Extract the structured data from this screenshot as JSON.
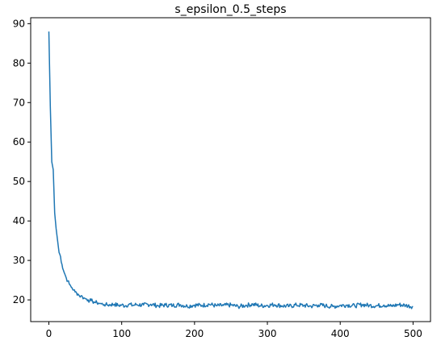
{
  "chart_data": {
    "type": "line",
    "title": "s_epsilon_0.5_steps",
    "xlabel": "",
    "ylabel": "",
    "xlim": [
      -24.95,
      523.95
    ],
    "ylim": [
      14.5,
      91.5
    ],
    "x_ticks": [
      0,
      100,
      200,
      300,
      400,
      500
    ],
    "y_ticks": [
      20,
      30,
      40,
      50,
      60,
      70,
      80,
      90
    ],
    "grid": false,
    "legend": "none",
    "line_color": "#1f77b4",
    "series": [
      {
        "x": [
          0,
          2,
          4,
          6,
          8,
          10,
          12,
          14,
          16,
          18,
          20,
          22,
          24,
          26,
          28,
          30,
          32,
          34,
          36,
          38,
          40,
          42,
          44,
          46,
          48,
          50,
          52,
          54,
          56,
          58,
          60,
          62,
          64,
          66,
          68,
          70,
          72,
          74,
          76,
          78,
          80,
          85,
          90,
          95,
          100,
          105,
          110,
          115,
          120,
          130,
          140,
          150,
          160,
          170,
          180,
          190,
          200,
          210,
          220,
          230,
          240,
          250,
          260,
          270,
          280,
          290,
          300,
          310,
          320,
          330,
          340,
          350,
          360,
          370,
          380,
          390,
          400,
          410,
          420,
          430,
          440,
          450,
          460,
          470,
          480,
          490,
          500
        ],
        "y": [
          88,
          69,
          55,
          53,
          42,
          38,
          35,
          32,
          31,
          29,
          27.5,
          26.5,
          25.5,
          24.8,
          24,
          23.5,
          23,
          22.5,
          22,
          21.8,
          21.5,
          21,
          21,
          20.8,
          20.5,
          20.3,
          20.2,
          20,
          19.8,
          19.8,
          19.6,
          19.5,
          19.3,
          19.3,
          19.2,
          19.1,
          19,
          18.9,
          18.8,
          18.8,
          18.7,
          18.8,
          18.9,
          18.6,
          18.7,
          18.5,
          18.9,
          18.6,
          18.8,
          18.7,
          18.9,
          18.5,
          18.7,
          18.6,
          18.8,
          18.4,
          18.7,
          18.6,
          18.9,
          18.5,
          18.6,
          18.7,
          18.3,
          18.6,
          18.9,
          18.5,
          18.6,
          18.8,
          18.5,
          18.4,
          18.7,
          18.6,
          18.4,
          18.7,
          18.5,
          18.3,
          18.6,
          18.7,
          18.5,
          18.8,
          18.6,
          18.5,
          18.7,
          18.4,
          18.8,
          18.6,
          18.3
        ]
      }
    ]
  }
}
